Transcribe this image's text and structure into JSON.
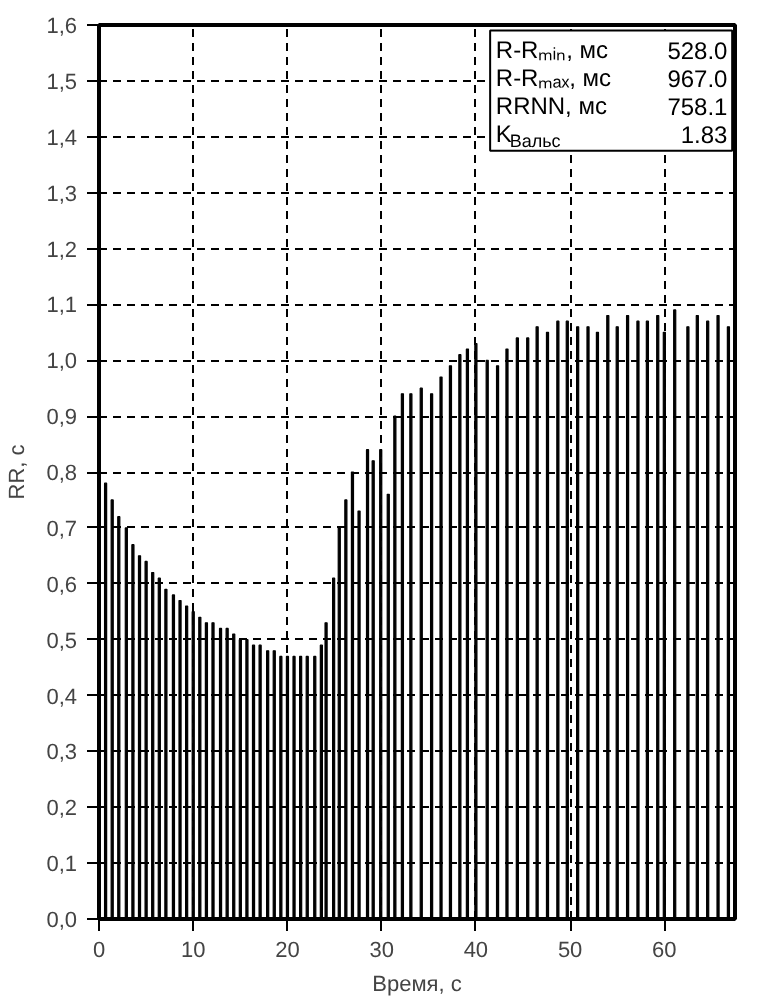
{
  "chart_data": {
    "type": "bar",
    "xlabel": "Время, с",
    "ylabel": "RR, с",
    "color": "#000000",
    "x": [
      0.7,
      1.4,
      2.1,
      2.9,
      3.6,
      4.3,
      5.0,
      5.7,
      6.4,
      7.1,
      7.9,
      8.6,
      9.3,
      10.0,
      10.7,
      11.4,
      12.1,
      12.9,
      13.6,
      14.3,
      15.0,
      15.7,
      16.4,
      17.1,
      17.9,
      18.6,
      19.3,
      20.0,
      20.7,
      21.4,
      22.1,
      22.9,
      23.6,
      24.1,
      24.9,
      25.5,
      26.2,
      26.9,
      27.6,
      28.5,
      29.1,
      29.9,
      30.7,
      31.4,
      32.2,
      33.1,
      34.2,
      35.3,
      36.3,
      37.3,
      38.3,
      39.1,
      40.0,
      41.2,
      42.3,
      43.3,
      44.4,
      45.5,
      46.5,
      47.6,
      48.7,
      49.7,
      50.8,
      51.9,
      52.9,
      54.0,
      55.0,
      56.1,
      57.2,
      58.2,
      59.3,
      60.0,
      61.1,
      62.5,
      63.5,
      64.6,
      65.7,
      66.8
    ],
    "values": [
      0.78,
      0.75,
      0.72,
      0.7,
      0.67,
      0.65,
      0.64,
      0.62,
      0.61,
      0.59,
      0.58,
      0.57,
      0.56,
      0.55,
      0.54,
      0.53,
      0.53,
      0.52,
      0.52,
      0.51,
      0.5,
      0.5,
      0.49,
      0.49,
      0.48,
      0.48,
      0.47,
      0.47,
      0.47,
      0.47,
      0.47,
      0.47,
      0.49,
      0.53,
      0.61,
      0.7,
      0.75,
      0.8,
      0.73,
      0.84,
      0.82,
      0.84,
      0.76,
      0.9,
      0.94,
      0.94,
      0.95,
      0.94,
      0.97,
      0.99,
      1.01,
      1.02,
      1.03,
      1.0,
      0.99,
      1.02,
      1.04,
      1.04,
      1.06,
      1.05,
      1.07,
      1.07,
      1.06,
      1.06,
      1.05,
      1.08,
      1.06,
      1.08,
      1.07,
      1.07,
      1.08,
      1.05,
      1.09,
      1.06,
      1.08,
      1.07,
      1.08,
      1.06
    ],
    "xlim": [
      0,
      67.5
    ],
    "ylim": [
      0,
      1.6
    ],
    "xticks": [
      0,
      10,
      20,
      30,
      40,
      50,
      60
    ],
    "yticks": [
      {
        "value": 0,
        "label": "0,0"
      },
      {
        "value": 0.1,
        "label": "0,1"
      },
      {
        "value": 0.2,
        "label": "0,2"
      },
      {
        "value": 0.3,
        "label": "0,3"
      },
      {
        "value": 0.4,
        "label": "0,4"
      },
      {
        "value": 0.5,
        "label": "0,5"
      },
      {
        "value": 0.6,
        "label": "0,6"
      },
      {
        "value": 0.7,
        "label": "0,7"
      },
      {
        "value": 0.8,
        "label": "0,8"
      },
      {
        "value": 0.9,
        "label": "0,9"
      },
      {
        "value": 1.0,
        "label": "1,0"
      },
      {
        "value": 1.1,
        "label": "1,1"
      },
      {
        "value": 1.2,
        "label": "1,2"
      },
      {
        "value": 1.3,
        "label": "1,3"
      },
      {
        "value": 1.4,
        "label": "1,4"
      },
      {
        "value": 1.5,
        "label": "1,5"
      },
      {
        "value": 1.6,
        "label": "1,6"
      }
    ],
    "grid": true,
    "annotations": [
      "R-Rₘᵢₙ, мс",
      "528.0",
      "R-Rₘₐₓ, мс",
      "967.0",
      "RRNN, мс",
      "758.1",
      "K$_{Вальс}$",
      "1.83"
    ]
  }
}
